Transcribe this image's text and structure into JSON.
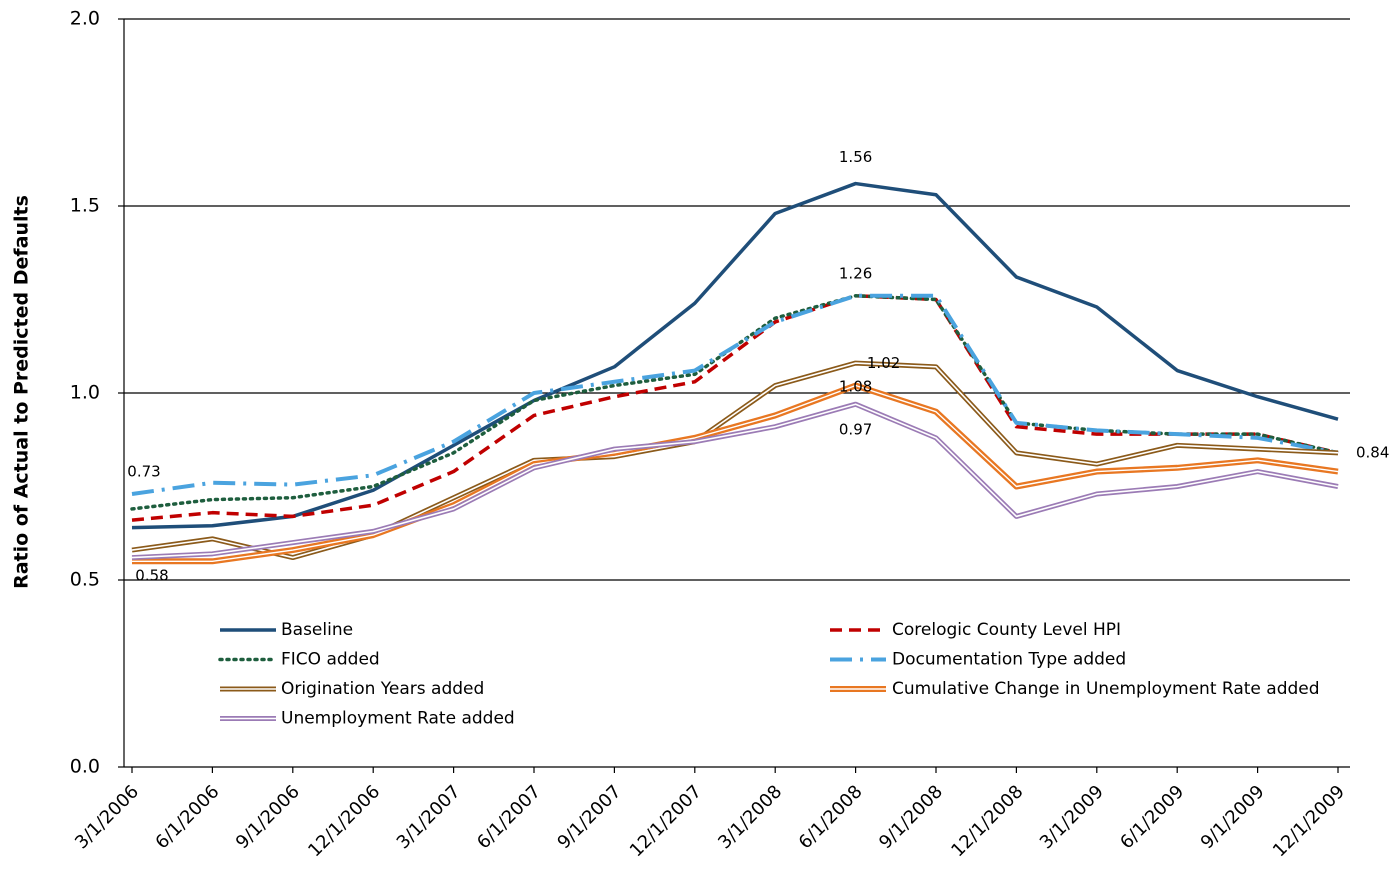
{
  "chart_data": {
    "type": "line",
    "y_label": "Ratio of Actual to Predicted Defaults",
    "categories": [
      "3/1/2006",
      "6/1/2006",
      "9/1/2006",
      "12/1/2006",
      "3/1/2007",
      "6/1/2007",
      "9/1/2007",
      "12/1/2007",
      "3/1/2008",
      "6/1/2008",
      "9/1/2008",
      "12/1/2008",
      "3/1/2009",
      "6/1/2009",
      "9/1/2009",
      "12/1/2009"
    ],
    "ylim": [
      0,
      2.0
    ],
    "yticks": [
      {
        "value": 0,
        "label": "0.0"
      },
      0.5,
      {
        "value": 1,
        "label": "1.0"
      },
      1.5,
      {
        "value": 2,
        "label": "2.0"
      }
    ],
    "grid": true,
    "series": [
      {
        "name": "Baseline",
        "color": "#1f4e79",
        "style": "solid",
        "labeled_points": [
          9
        ],
        "values": [
          0.64,
          0.645,
          0.67,
          0.74,
          0.86,
          0.98,
          1.07,
          1.24,
          1.48,
          1.56,
          1.53,
          1.31,
          1.23,
          1.06,
          0.99,
          0.93
        ]
      },
      {
        "name": "Corelogic County Level HPI",
        "color": "#c00000",
        "style": "dashed",
        "labeled_points": [],
        "values": [
          0.66,
          0.68,
          0.67,
          0.7,
          0.79,
          0.94,
          0.99,
          1.03,
          1.19,
          1.26,
          1.25,
          0.91,
          0.89,
          0.89,
          0.89,
          0.84
        ]
      },
      {
        "name": "FICO added",
        "color": "#1e5e3e",
        "style": "dotted",
        "labeled_points": [],
        "values": [
          0.69,
          0.715,
          0.72,
          0.75,
          0.84,
          0.98,
          1.02,
          1.05,
          1.2,
          1.26,
          1.25,
          0.92,
          0.9,
          0.89,
          0.89,
          0.84
        ]
      },
      {
        "name": "Documentation Type added",
        "color": "#4aa3df",
        "style": "dashdot",
        "labeled_points": [
          0,
          9,
          15
        ],
        "values": [
          0.73,
          0.76,
          0.755,
          0.78,
          0.87,
          1.0,
          1.03,
          1.06,
          1.19,
          1.26,
          1.26,
          0.92,
          0.9,
          0.89,
          0.88,
          0.84
        ]
      },
      {
        "name": "Origination Years added",
        "color": "#8b5a1a",
        "style": "double",
        "labeled_points": [
          0,
          9
        ],
        "values": [
          0.58,
          0.61,
          0.56,
          0.62,
          0.72,
          0.82,
          0.83,
          0.87,
          1.02,
          1.08,
          1.07,
          0.84,
          0.81,
          0.86,
          0.85,
          0.84
        ]
      },
      {
        "name": "Cumulative Change in Unemployment Rate added",
        "color": "#e87722",
        "style": "double-thick",
        "labeled_points": [
          9
        ],
        "values": [
          0.55,
          0.55,
          0.58,
          0.62,
          0.7,
          0.81,
          0.84,
          0.88,
          0.94,
          1.02,
          0.95,
          0.75,
          0.79,
          0.8,
          0.82,
          0.79
        ]
      },
      {
        "name": "Unemployment Rate added",
        "color": "#9b7bb5",
        "style": "double",
        "labeled_points": [
          9
        ],
        "values": [
          0.56,
          0.57,
          0.6,
          0.63,
          0.69,
          0.8,
          0.85,
          0.87,
          0.91,
          0.97,
          0.88,
          0.67,
          0.73,
          0.75,
          0.79,
          0.75
        ]
      }
    ]
  }
}
